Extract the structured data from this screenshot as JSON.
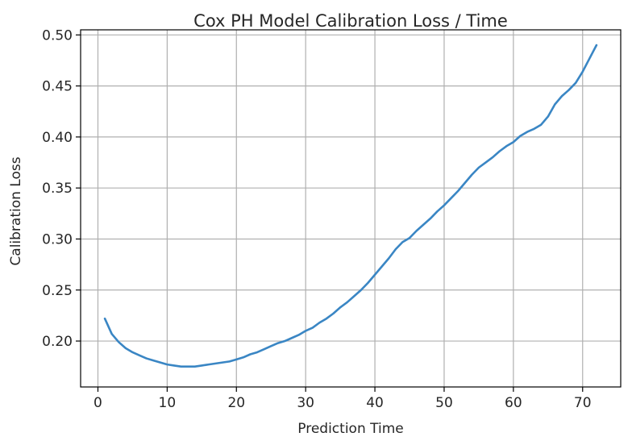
{
  "chart_data": {
    "type": "line",
    "title": "Cox PH Model Calibration Loss / Time",
    "xlabel": "Prediction Time",
    "ylabel": "Calibration Loss",
    "xlim": [
      -2.5,
      75.5
    ],
    "ylim": [
      0.155,
      0.505
    ],
    "xticks": [
      0,
      10,
      20,
      30,
      40,
      50,
      60,
      70
    ],
    "yticks": [
      0.2,
      0.25,
      0.3,
      0.35,
      0.4,
      0.45,
      0.5
    ],
    "xtick_labels": [
      "0",
      "10",
      "20",
      "30",
      "40",
      "50",
      "60",
      "70"
    ],
    "ytick_labels": [
      "0.20",
      "0.25",
      "0.30",
      "0.35",
      "0.40",
      "0.45",
      "0.50"
    ],
    "grid": true,
    "series": [
      {
        "color": "#3a86c4",
        "x": [
          1,
          2,
          3,
          4,
          5,
          6,
          7,
          8,
          9,
          10,
          11,
          12,
          13,
          14,
          15,
          16,
          17,
          18,
          19,
          20,
          21,
          22,
          23,
          24,
          25,
          26,
          27,
          28,
          29,
          30,
          31,
          32,
          33,
          34,
          35,
          36,
          37,
          38,
          39,
          40,
          41,
          42,
          43,
          44,
          45,
          46,
          47,
          48,
          49,
          50,
          51,
          52,
          53,
          54,
          55,
          56,
          57,
          58,
          59,
          60,
          61,
          62,
          63,
          64,
          65,
          66,
          67,
          68,
          69,
          70,
          71,
          72
        ],
        "y": [
          0.222,
          0.207,
          0.199,
          0.193,
          0.189,
          0.186,
          0.183,
          0.181,
          0.179,
          0.177,
          0.176,
          0.175,
          0.175,
          0.175,
          0.176,
          0.177,
          0.178,
          0.179,
          0.18,
          0.182,
          0.184,
          0.187,
          0.189,
          0.192,
          0.195,
          0.198,
          0.2,
          0.203,
          0.206,
          0.21,
          0.213,
          0.218,
          0.222,
          0.227,
          0.233,
          0.238,
          0.244,
          0.25,
          0.257,
          0.265,
          0.273,
          0.281,
          0.29,
          0.297,
          0.301,
          0.308,
          0.314,
          0.32,
          0.327,
          0.333,
          0.34,
          0.347,
          0.355,
          0.363,
          0.37,
          0.375,
          0.38,
          0.386,
          0.391,
          0.395,
          0.401,
          0.405,
          0.408,
          0.412,
          0.42,
          0.432,
          0.44,
          0.446,
          0.453,
          0.464,
          0.477,
          0.49
        ]
      }
    ]
  }
}
